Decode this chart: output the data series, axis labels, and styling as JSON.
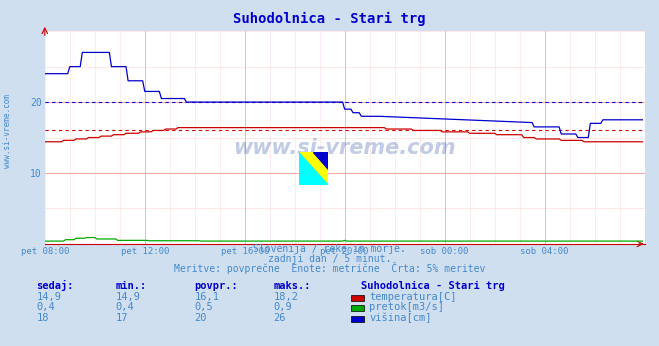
{
  "title": "Suhodolnica - Stari trg",
  "title_color": "#0000cc",
  "bg_color": "#d0dff0",
  "plot_bg_color": "#ffffff",
  "grid_color_major": "#ffaaaa",
  "grid_color_minor": "#ffdddd",
  "tick_color": "#4488cc",
  "text_color": "#4488cc",
  "x_labels": [
    "pet 08:00",
    "pet 12:00",
    "pet 16:00",
    "pet 20:00",
    "sob 00:00",
    "sob 04:00"
  ],
  "x_ticks": [
    0,
    48,
    96,
    144,
    192,
    240
  ],
  "x_max": 288,
  "y_min": 0,
  "y_max": 30,
  "y_ticks": [
    10,
    20
  ],
  "temp_color": "#cc0000",
  "flow_color": "#00aa00",
  "height_color": "#0000cc",
  "temp_avg": 16.1,
  "height_avg": 20,
  "subtitle1": "Slovenija / reke in morje.",
  "subtitle2": "zadnji dan / 5 minut.",
  "subtitle3": "Meritve: povprečne  Enote: metrične  Črta: 5% meritev",
  "legend_title": "Suhodolnica - Stari trg",
  "col_headers": [
    "sedaj:",
    "min.:",
    "povpr.:",
    "maks.:"
  ],
  "temp_row": [
    "14,9",
    "14,9",
    "16,1",
    "18,2"
  ],
  "flow_row": [
    "0,4",
    "0,4",
    "0,5",
    "0,9"
  ],
  "height_row": [
    "18",
    "17",
    "20",
    "26"
  ],
  "temp_label": "temperatura[C]",
  "flow_label": "pretok[m3/s]",
  "height_label": "višina[cm]",
  "watermark": "www.si-vreme.com",
  "sidebar_text": "www.si-vreme.com"
}
